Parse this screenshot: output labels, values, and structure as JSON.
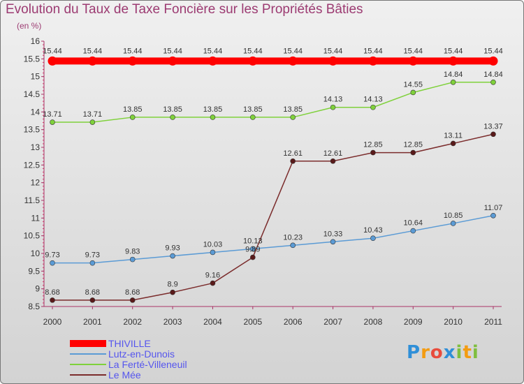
{
  "chart_data": {
    "type": "line",
    "title": "Evolution du Taux de Taxe Foncière sur les Propriétés Bâties",
    "subtitle": "(en %)",
    "categories": [
      "2000",
      "2001",
      "2002",
      "2003",
      "2004",
      "2005",
      "2006",
      "2007",
      "2008",
      "2009",
      "2010",
      "2011"
    ],
    "ylim": [
      8.5,
      16
    ],
    "yticks": [
      "8.5",
      "9",
      "9.5",
      "10",
      "10.5",
      "11",
      "11.5",
      "12",
      "12.5",
      "13",
      "13.5",
      "14",
      "14.5",
      "15",
      "15.5",
      "16"
    ],
    "grid": false,
    "legend_position": "bottom-left",
    "series": [
      {
        "name": "THIVILLE",
        "color": "#ff0000",
        "values": [
          15.44,
          15.44,
          15.44,
          15.44,
          15.44,
          15.44,
          15.44,
          15.44,
          15.44,
          15.44,
          15.44,
          15.44
        ],
        "labels": [
          "15.44",
          "15.44",
          "15.44",
          "15.44",
          "15.44",
          "15.44",
          "15.44",
          "15.44",
          "15.44",
          "15.44",
          "15.44",
          "15.44"
        ]
      },
      {
        "name": "Lutz-en-Dunois",
        "color": "#5b9bd5",
        "values": [
          9.73,
          9.73,
          9.83,
          9.93,
          10.03,
          10.13,
          10.23,
          10.33,
          10.43,
          10.64,
          10.85,
          11.07
        ],
        "labels": [
          "9.73",
          "9.73",
          "9.83",
          "9.93",
          "10.03",
          "10.13",
          "10.23",
          "10.33",
          "10.43",
          "10.64",
          "10.85",
          "11.07"
        ]
      },
      {
        "name": "La Ferté-Villeneuil",
        "color": "#7fd13b",
        "values": [
          13.71,
          13.71,
          13.85,
          13.85,
          13.85,
          13.85,
          13.85,
          14.13,
          14.13,
          14.55,
          14.84,
          14.84
        ],
        "labels": [
          "13.71",
          "13.71",
          "13.85",
          "13.85",
          "13.85",
          "13.85",
          "13.85",
          "14.13",
          "14.13",
          "14.55",
          "14.84",
          "14.84"
        ]
      },
      {
        "name": "Le Mée",
        "color": "#7b2c2c",
        "values": [
          8.68,
          8.68,
          8.68,
          8.9,
          9.16,
          9.89,
          12.61,
          12.61,
          12.85,
          12.85,
          13.11,
          13.37
        ],
        "labels": [
          "8.68",
          "8.68",
          "8.68",
          "8.9",
          "9.16",
          "9.89",
          "12.61",
          "12.61",
          "12.85",
          "12.85",
          "13.11",
          "13.37"
        ]
      }
    ]
  },
  "logo": {
    "p": "P",
    "r": "r",
    "o": "o",
    "x": "x",
    "i1": "i",
    "t": "t",
    "i2": "i"
  }
}
